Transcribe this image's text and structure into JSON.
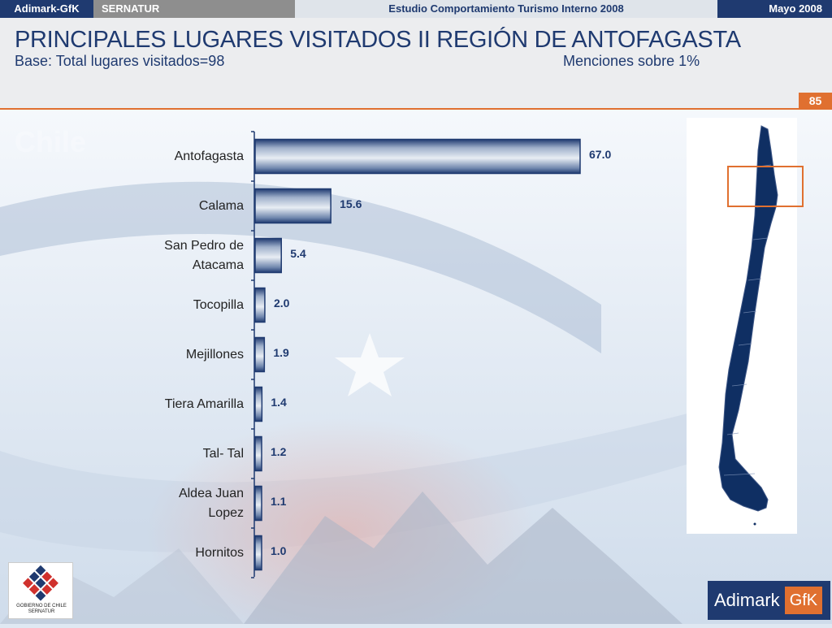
{
  "topbar": {
    "brand": "Adimark-GfK",
    "client": "SERNATUR",
    "study": "Estudio Comportamiento Turismo Interno 2008",
    "date": "Mayo 2008"
  },
  "header": {
    "title": "PRINCIPALES LUGARES VISITADOS II REGIÓN DE ANTOFAGASTA",
    "subtitle": "Base: Total lugares visitados=98",
    "note": "Menciones sobre 1%",
    "page_number": "85"
  },
  "chart_data": {
    "type": "bar",
    "orientation": "horizontal",
    "categories": [
      "Antofagasta",
      "Calama",
      "San Pedro de Atacama",
      "Tocopilla",
      "Mejillones",
      "Tiera Amarilla",
      "Tal- Tal",
      "Aldea Juan Lopez",
      "Hornitos"
    ],
    "category_lines": [
      [
        "Antofagasta"
      ],
      [
        "Calama"
      ],
      [
        "San Pedro de",
        "Atacama"
      ],
      [
        "Tocopilla"
      ],
      [
        "Mejillones"
      ],
      [
        "Tiera Amarilla"
      ],
      [
        "Tal- Tal"
      ],
      [
        "Aldea Juan",
        "Lopez"
      ],
      [
        "Hornitos"
      ]
    ],
    "values": [
      67.0,
      15.6,
      5.4,
      2.0,
      1.9,
      1.4,
      1.2,
      1.1,
      1.0
    ],
    "value_labels": [
      "67.0",
      "15.6",
      "5.4",
      "2.0",
      "1.9",
      "1.4",
      "1.2",
      "1.1",
      "1.0"
    ],
    "xlim": [
      0,
      67
    ],
    "grid": false,
    "legend": "none",
    "bar_color": "#1f3a70"
  },
  "logos": {
    "left_text": "GOBIERNO DE CHILE",
    "left_subtext": "SERNATUR",
    "right_text": "Adimark",
    "right_box": "GfK"
  },
  "colors": {
    "navy": "#1f3a70",
    "accent": "#e07030",
    "map_fill": "#0f2f63"
  }
}
